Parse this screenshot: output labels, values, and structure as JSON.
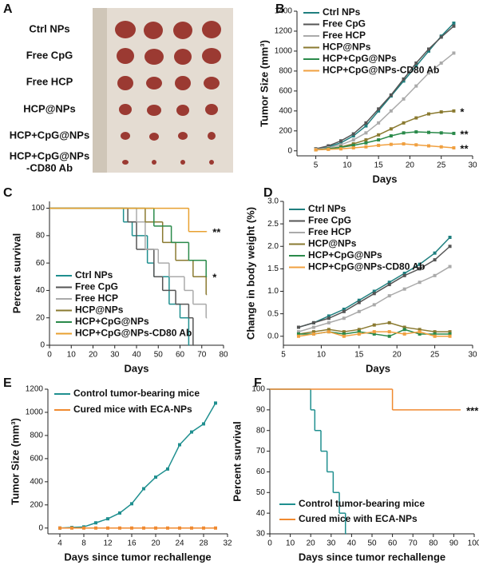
{
  "photo": {
    "panel": "A",
    "rows": [
      "Ctrl NPs",
      "Free CpG",
      "Free HCP",
      "HCP@NPs",
      "HCP+CpG@NPs",
      "HCP+CpG@NPs",
      "-CD80 Ab"
    ]
  },
  "chart_data": [
    {
      "panel": "B",
      "type": "line",
      "xlabel": "Days",
      "ylabel": "Tumor Size (mm³)",
      "xlim": [
        2,
        30
      ],
      "xticks": [
        5,
        10,
        15,
        20,
        25,
        30
      ],
      "ylim": [
        -50,
        1400
      ],
      "yticks": [
        0,
        200,
        400,
        600,
        800,
        1000,
        1200,
        1400
      ],
      "x": [
        5,
        7,
        9,
        11,
        13,
        15,
        17,
        19,
        21,
        23,
        25,
        27
      ],
      "series": [
        {
          "name": "Ctrl NPs",
          "color": "#1f7f7f",
          "values": [
            20,
            40,
            80,
            150,
            250,
            400,
            550,
            700,
            850,
            1000,
            1150,
            1280
          ]
        },
        {
          "name": "Free CpG",
          "color": "#555555",
          "values": [
            20,
            50,
            100,
            170,
            280,
            420,
            560,
            720,
            880,
            1020,
            1140,
            1250
          ]
        },
        {
          "name": "Free HCP",
          "color": "#aaaaaa",
          "values": [
            15,
            30,
            60,
            110,
            180,
            280,
            400,
            520,
            650,
            780,
            880,
            980
          ]
        },
        {
          "name": "HCP@NPs",
          "color": "#8a7a30",
          "values": [
            10,
            20,
            40,
            70,
            110,
            160,
            220,
            280,
            330,
            370,
            390,
            400
          ]
        },
        {
          "name": "HCP+CpG@NPs",
          "color": "#2a8a4a",
          "values": [
            10,
            20,
            35,
            55,
            80,
            110,
            150,
            180,
            190,
            185,
            180,
            175
          ]
        },
        {
          "name": "HCP+CpG@NPs-CD80 Ab",
          "color": "#f0a040",
          "values": [
            10,
            15,
            20,
            30,
            40,
            55,
            65,
            70,
            60,
            50,
            40,
            30
          ]
        }
      ],
      "annotations": [
        "*",
        "**",
        "**"
      ]
    },
    {
      "panel": "C",
      "type": "survival",
      "xlabel": "Days",
      "ylabel": "Percent survival",
      "xlim": [
        0,
        80
      ],
      "xticks": [
        0,
        10,
        20,
        30,
        40,
        50,
        60,
        70,
        80
      ],
      "ylim": [
        0,
        105
      ],
      "yticks": [
        0,
        20,
        40,
        60,
        80,
        100
      ],
      "series": [
        {
          "name": "Ctrl NPs",
          "color": "#1f8f8f",
          "x": [
            0,
            34,
            38,
            45,
            48,
            55,
            60,
            64
          ],
          "values": [
            100,
            90,
            80,
            60,
            50,
            30,
            20,
            0
          ]
        },
        {
          "name": "Free CpG",
          "color": "#555555",
          "x": [
            0,
            36,
            40,
            48,
            52,
            58,
            64,
            66
          ],
          "values": [
            100,
            90,
            70,
            50,
            40,
            30,
            20,
            0
          ]
        },
        {
          "name": "Free HCP",
          "color": "#aaaaaa",
          "x": [
            0,
            40,
            44,
            50,
            55,
            62,
            66,
            72
          ],
          "values": [
            100,
            90,
            70,
            60,
            50,
            40,
            30,
            20
          ]
        },
        {
          "name": "HCP@NPs",
          "color": "#8a7a30",
          "x": [
            0,
            44,
            52,
            58,
            66,
            72
          ],
          "values": [
            100,
            90,
            75,
            62,
            50,
            37
          ]
        },
        {
          "name": "HCP+CpG@NPs",
          "color": "#2a8a4a",
          "x": [
            0,
            48,
            56,
            64,
            72
          ],
          "values": [
            100,
            87,
            75,
            62,
            50
          ]
        },
        {
          "name": "HCP+CpG@NPs-CD80 Ab",
          "color": "#e8a030",
          "x": [
            0,
            64,
            72
          ],
          "values": [
            100,
            83,
            83
          ]
        }
      ],
      "annotations": [
        "**",
        "*"
      ]
    },
    {
      "panel": "D",
      "type": "line",
      "xlabel": "Days",
      "ylabel": "Change in  body weight (%)",
      "xlim": [
        5,
        30
      ],
      "xticks": [
        5,
        10,
        15,
        20,
        25,
        30
      ],
      "ylim": [
        -0.2,
        3.0
      ],
      "yticks": [
        {
          "value": 0,
          "label": "0.0"
        },
        {
          "value": 0.5,
          "label": "0.5"
        },
        {
          "value": 1,
          "label": "1.0"
        },
        {
          "value": 1.5,
          "label": "1.5"
        },
        {
          "value": 2,
          "label": "2.0"
        },
        {
          "value": 2.5,
          "label": "2.5"
        },
        {
          "value": 3,
          "label": "3.0"
        }
      ],
      "x": [
        7,
        9,
        11,
        13,
        15,
        17,
        19,
        21,
        23,
        25,
        27
      ],
      "series": [
        {
          "name": "Ctrl NPs",
          "color": "#1f7f7f",
          "values": [
            0.2,
            0.3,
            0.45,
            0.6,
            0.8,
            1.0,
            1.2,
            1.4,
            1.6,
            1.85,
            2.2
          ]
        },
        {
          "name": "Free CpG",
          "color": "#555555",
          "values": [
            0.2,
            0.3,
            0.4,
            0.55,
            0.75,
            0.95,
            1.15,
            1.35,
            1.5,
            1.7,
            2.0
          ]
        },
        {
          "name": "Free HCP",
          "color": "#aaaaaa",
          "values": [
            0.1,
            0.2,
            0.3,
            0.4,
            0.55,
            0.7,
            0.9,
            1.05,
            1.2,
            1.35,
            1.55
          ]
        },
        {
          "name": "HCP@NPs",
          "color": "#8a7a30",
          "values": [
            0.05,
            0.1,
            0.15,
            0.1,
            0.15,
            0.25,
            0.3,
            0.2,
            0.15,
            0.1,
            0.1
          ]
        },
        {
          "name": "HCP+CpG@NPs",
          "color": "#2a8a4a",
          "values": [
            0.05,
            0.05,
            0.1,
            0.05,
            0.1,
            0.05,
            0.0,
            0.15,
            0.05,
            0.05,
            0.05
          ]
        },
        {
          "name": "HCP+CpG@NPs-CD80 Ab",
          "color": "#f0a040",
          "values": [
            0.0,
            0.05,
            0.1,
            0.0,
            0.05,
            0.1,
            0.1,
            0.05,
            0.1,
            0.0,
            0.0
          ]
        }
      ]
    },
    {
      "panel": "E",
      "type": "line",
      "xlabel": "Days since tumor rechallenge",
      "ylabel": "Tumor Size (mm³)",
      "xlim": [
        2,
        32
      ],
      "xticks": [
        4,
        8,
        12,
        16,
        20,
        24,
        28,
        32
      ],
      "ylim": [
        -50,
        1200
      ],
      "yticks": [
        0,
        200,
        400,
        600,
        800,
        1000,
        1200
      ],
      "x": [
        4,
        6,
        8,
        10,
        12,
        14,
        16,
        18,
        20,
        22,
        24,
        26,
        28,
        30
      ],
      "series": [
        {
          "name": "Control tumor-bearing mice",
          "color": "#1f8f8f",
          "values": [
            0,
            5,
            10,
            45,
            80,
            130,
            210,
            340,
            440,
            510,
            720,
            830,
            900,
            1080
          ]
        },
        {
          "name": "Cured mice with ECA-NPs",
          "color": "#f08a30",
          "values": [
            0,
            0,
            0,
            0,
            0,
            0,
            0,
            0,
            0,
            0,
            0,
            0,
            0,
            0
          ]
        }
      ]
    },
    {
      "panel": "F",
      "type": "survival",
      "xlabel": "Days since tumor rechallenge",
      "ylabel": "Percent survival",
      "xlim": [
        0,
        100
      ],
      "xticks": [
        0,
        10,
        20,
        30,
        40,
        50,
        60,
        70,
        80,
        90,
        100
      ],
      "ylim": [
        30,
        100
      ],
      "yticks": [
        30,
        40,
        50,
        60,
        70,
        80,
        90,
        100
      ],
      "series": [
        {
          "name": "Control tumor-bearing mice",
          "color": "#1f8f8f",
          "x": [
            0,
            20,
            22,
            25,
            28,
            31,
            34,
            37
          ],
          "values": [
            100,
            90,
            80,
            70,
            60,
            50,
            40,
            30
          ]
        },
        {
          "name": "Cured mice with ECA-NPs",
          "color": "#f08a30",
          "x": [
            0,
            60,
            93
          ],
          "values": [
            100,
            90,
            90
          ]
        }
      ],
      "annotations": [
        "***"
      ]
    }
  ]
}
